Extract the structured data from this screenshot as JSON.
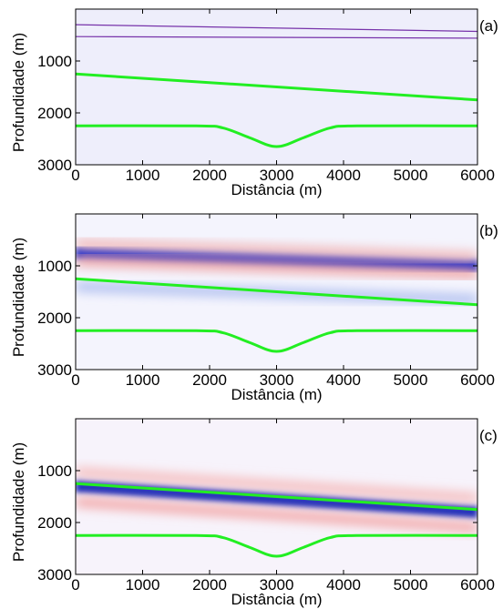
{
  "chart_data": [
    {
      "type": "heatmap",
      "panel_label": "(a)",
      "xlabel": "Distância (m)",
      "ylabel": "Profundidade (m)",
      "xlim": [
        0,
        6000
      ],
      "ylim": [
        0,
        3000
      ],
      "y_inverted": true,
      "xticks": [
        "0",
        "1000",
        "2000",
        "3000",
        "4000",
        "5000",
        "6000"
      ],
      "yticks": [
        "1000",
        "2000",
        "3000"
      ],
      "interface_color": "#22ee22",
      "colormap": [
        "#0000aa",
        "#ffffff",
        "#dd0000"
      ],
      "interfaces": [
        {
          "x": [
            0,
            6000
          ],
          "y": [
            1250,
            1750
          ]
        },
        {
          "x": [
            0,
            1800,
            2200,
            2600,
            3000,
            3400,
            3800,
            4200,
            6000
          ],
          "y": [
            2250,
            2250,
            2290,
            2480,
            2650,
            2480,
            2290,
            2250,
            2250
          ]
        }
      ],
      "events": [
        {
          "x": [
            0,
            6000
          ],
          "y": [
            300,
            430
          ],
          "color": "#7733aa"
        },
        {
          "x": [
            0,
            6000
          ],
          "y": [
            530,
            560
          ],
          "color": "#7733aa"
        }
      ]
    },
    {
      "type": "heatmap",
      "panel_label": "(b)",
      "xlabel": "Distância (m)",
      "ylabel": "Profundidade (m)",
      "xlim": [
        0,
        6000
      ],
      "ylim": [
        0,
        3000
      ],
      "y_inverted": true,
      "xticks": [
        "0",
        "1000",
        "2000",
        "3000",
        "4000",
        "5000",
        "6000"
      ],
      "yticks": [
        "1000",
        "2000",
        "3000"
      ],
      "interface_color": "#22ee22",
      "interfaces": [
        {
          "x": [
            0,
            6000
          ],
          "y": [
            1250,
            1750
          ]
        },
        {
          "x": [
            0,
            1800,
            2200,
            2600,
            3000,
            3400,
            3800,
            4200,
            6000
          ],
          "y": [
            2250,
            2250,
            2290,
            2480,
            2650,
            2480,
            2290,
            2250,
            2250
          ]
        }
      ],
      "events": [
        {
          "x": [
            0,
            6000
          ],
          "y": [
            750,
            1000
          ],
          "color": "#2233cc"
        },
        {
          "x": [
            0,
            6000
          ],
          "y": [
            900,
            1150
          ],
          "color": "#ee9999"
        },
        {
          "x": [
            0,
            6000
          ],
          "y": [
            580,
            830
          ],
          "color": "#f0b0b0"
        },
        {
          "x": [
            0,
            6000
          ],
          "y": [
            1400,
            1650
          ],
          "color": "#aabbee"
        }
      ]
    },
    {
      "type": "heatmap",
      "panel_label": "(c)",
      "xlabel": "Distância (m)",
      "ylabel": "Profundidade (m)",
      "xlim": [
        0,
        6000
      ],
      "ylim": [
        0,
        3000
      ],
      "y_inverted": true,
      "xticks": [
        "0",
        "1000",
        "2000",
        "3000",
        "4000",
        "5000",
        "6000"
      ],
      "yticks": [
        "1000",
        "2000",
        "3000"
      ],
      "interface_color": "#22ee22",
      "interfaces": [
        {
          "x": [
            0,
            6000
          ],
          "y": [
            1250,
            1750
          ]
        },
        {
          "x": [
            0,
            1800,
            2200,
            2600,
            3000,
            3400,
            3800,
            4200,
            6000
          ],
          "y": [
            2250,
            2250,
            2290,
            2480,
            2650,
            2480,
            2290,
            2250,
            2250
          ]
        }
      ],
      "events": [
        {
          "x": [
            0,
            6000
          ],
          "y": [
            1300,
            1800
          ],
          "color": "#2233bb"
        },
        {
          "x": [
            0,
            6000
          ],
          "y": [
            1600,
            2100
          ],
          "color": "#f2a0a0"
        },
        {
          "x": [
            0,
            6000
          ],
          "y": [
            1030,
            1530
          ],
          "color": "#f4b8b8"
        },
        {
          "x": [
            0,
            6000
          ],
          "y": [
            2300,
            2300
          ],
          "color": "#4455cc"
        }
      ]
    }
  ]
}
